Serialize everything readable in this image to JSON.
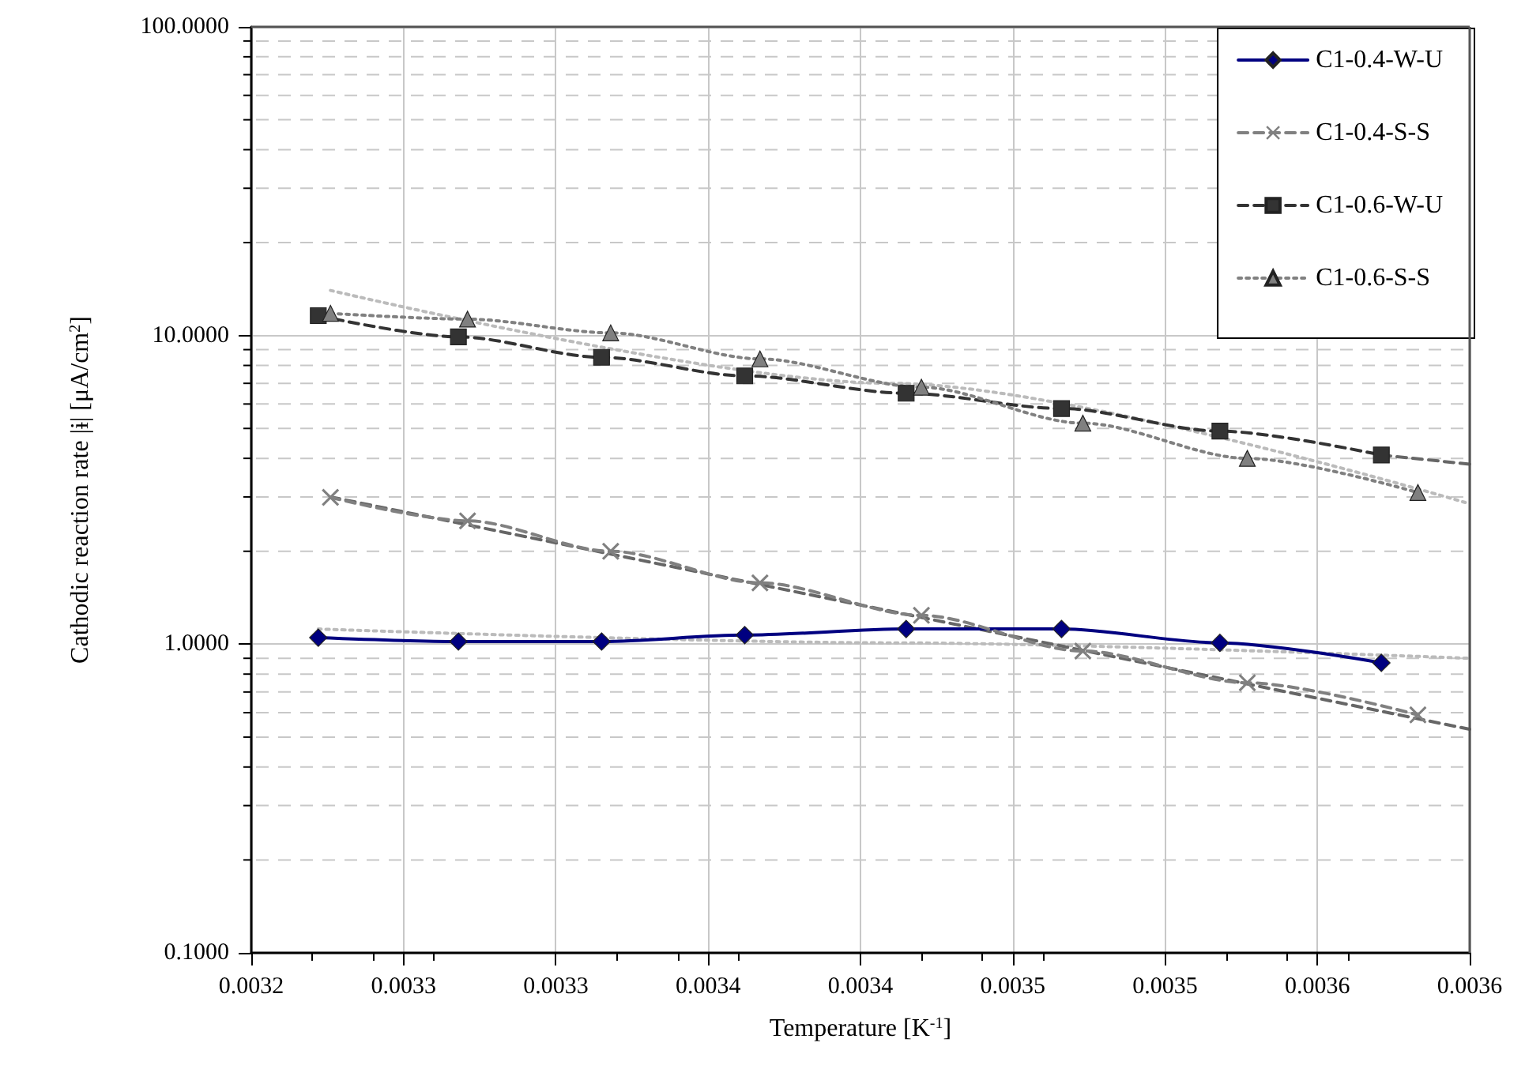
{
  "chart_data": {
    "type": "line",
    "xlabel": "Temperature [K$^{-1}$]",
    "ylabel": "Cathodic reaction rate |ɨ| [μA/cm$^{2}$]",
    "xlim": [
      0.00322,
      0.00362
    ],
    "xticks": [
      {
        "value": 0.00322,
        "label": "0.0032"
      },
      {
        "value": 0.00327,
        "label": "0.0033"
      },
      {
        "value": 0.00332,
        "label": "0.0033"
      },
      {
        "value": 0.00337,
        "label": "0.0034"
      },
      {
        "value": 0.00342,
        "label": "0.0034"
      },
      {
        "value": 0.00347,
        "label": "0.0035"
      },
      {
        "value": 0.00352,
        "label": "0.0035"
      },
      {
        "value": 0.00357,
        "label": "0.0036"
      },
      {
        "value": 0.00362,
        "label": "0.0036"
      }
    ],
    "ylim": [
      0.1,
      100
    ],
    "yticks": [
      {
        "value": 0.1,
        "label": "0.1000"
      },
      {
        "value": 1,
        "label": "1.0000"
      },
      {
        "value": 10,
        "label": "10.0000"
      },
      {
        "value": 100,
        "label": "100.0000"
      }
    ],
    "log": "y",
    "grid": true,
    "legend": "top right",
    "series": [
      {
        "name": "C1-0.4-W-U",
        "color": "#000080",
        "marker": "diamond",
        "line_style": "solid",
        "x": [
          0.003242,
          0.003288,
          0.003335,
          0.003382,
          0.003435,
          0.003486,
          0.003538,
          0.003591
        ],
        "values": [
          1.05,
          1.02,
          1.02,
          1.07,
          1.12,
          1.12,
          1.01,
          0.87
        ]
      },
      {
        "name": "C1-0.4-S-S",
        "color": "#808080",
        "marker": "cross",
        "line_style": "dashed",
        "x": [
          0.003246,
          0.003291,
          0.003338,
          0.003387,
          0.00344,
          0.003493,
          0.003547,
          0.003603
        ],
        "values": [
          2.99,
          2.51,
          2.0,
          1.58,
          1.24,
          0.95,
          0.75,
          0.59
        ]
      },
      {
        "name": "C1-0.6-W-U",
        "color": "#333333",
        "marker": "square",
        "line_style": "dashed",
        "x": [
          0.003242,
          0.003288,
          0.003335,
          0.003382,
          0.003435,
          0.003486,
          0.003538,
          0.003591
        ],
        "values": [
          11.6,
          9.9,
          8.5,
          7.4,
          6.5,
          5.8,
          4.9,
          4.1
        ]
      },
      {
        "name": "C1-0.6-S-S",
        "color": "#808080",
        "marker": "triangle",
        "line_style": "dotted",
        "x": [
          0.003246,
          0.003291,
          0.003338,
          0.003387,
          0.00344,
          0.003493,
          0.003547,
          0.003603
        ],
        "values": [
          11.8,
          11.3,
          10.2,
          8.4,
          6.8,
          5.2,
          4.0,
          3.1
        ]
      },
      {
        "color": "#bbbbbb",
        "marker": "none",
        "line_style": "dotted",
        "x": [
          0.003242,
          0.00343,
          0.00362
        ],
        "values": [
          1.12,
          1.01,
          0.9
        ]
      },
      {
        "color": "#666666",
        "marker": "none",
        "line_style": "dashed",
        "x": [
          0.003246,
          0.00362
        ],
        "values": [
          3.0,
          0.53
        ]
      },
      {
        "color": "#666666",
        "marker": "none",
        "line_style": "dashed",
        "x": [
          0.003591,
          0.00362
        ],
        "values": [
          4.1,
          3.83
        ]
      },
      {
        "color": "#bbbbbb",
        "marker": "none",
        "line_style": "dotted",
        "x": [
          0.003246,
          0.00343,
          0.00362
        ],
        "values": [
          14.0,
          7.0,
          2.85
        ]
      }
    ]
  }
}
